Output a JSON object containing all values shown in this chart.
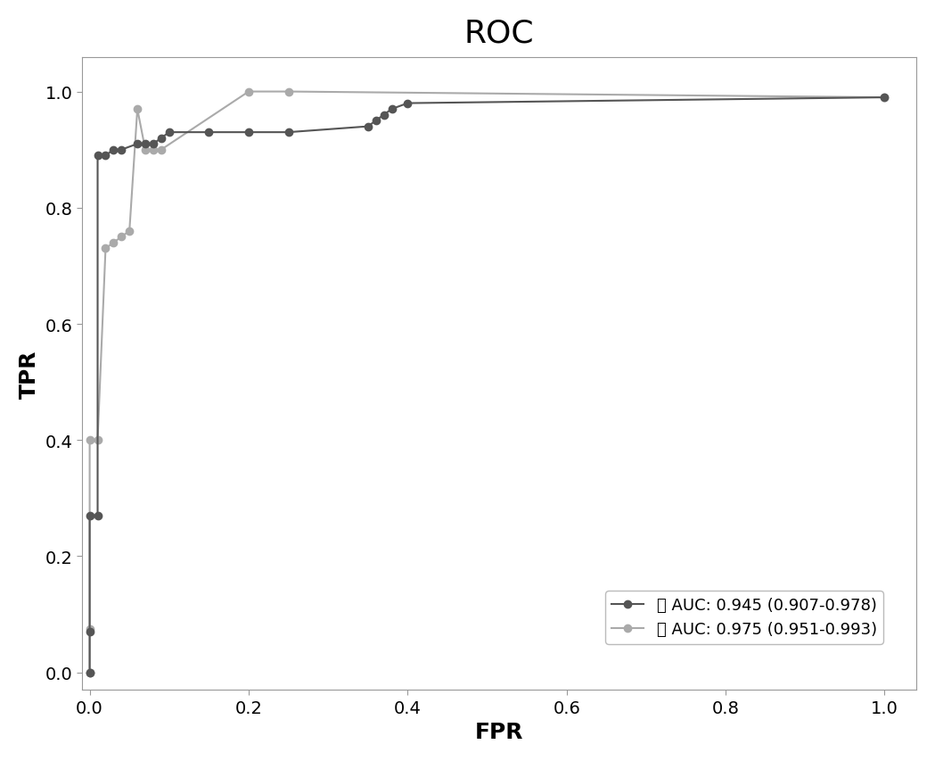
{
  "title": "ROC",
  "xlabel": "FPR",
  "ylabel": "TPR",
  "title_fontsize": 26,
  "label_fontsize": 18,
  "tick_fontsize": 14,
  "legend_fontsize": 13,
  "background_color": "#ffffff",
  "series1_label": "属 AUC: 0.945 (0.907-0.978)",
  "series2_label": "种 AUC: 0.975 (0.951-0.993)",
  "series1_color": "#555555",
  "series2_color": "#aaaaaa",
  "series1_fpr": [
    0.0,
    0.0,
    0.0,
    0.01,
    0.01,
    0.02,
    0.03,
    0.04,
    0.06,
    0.07,
    0.08,
    0.09,
    0.1,
    0.15,
    0.2,
    0.25,
    0.35,
    0.36,
    0.37,
    0.38,
    0.4,
    1.0
  ],
  "series1_tpr": [
    0.0,
    0.07,
    0.27,
    0.27,
    0.89,
    0.89,
    0.9,
    0.9,
    0.91,
    0.91,
    0.91,
    0.92,
    0.93,
    0.93,
    0.93,
    0.93,
    0.94,
    0.95,
    0.96,
    0.97,
    0.98,
    0.99
  ],
  "series2_fpr": [
    0.0,
    0.0,
    0.0,
    0.0,
    0.01,
    0.02,
    0.03,
    0.04,
    0.05,
    0.06,
    0.07,
    0.08,
    0.09,
    0.2,
    0.25,
    1.0
  ],
  "series2_tpr": [
    0.0,
    0.0,
    0.075,
    0.4,
    0.4,
    0.73,
    0.74,
    0.75,
    0.76,
    0.97,
    0.9,
    0.9,
    0.9,
    1.0,
    1.0,
    0.99
  ],
  "xlim": [
    -0.01,
    1.04
  ],
  "ylim": [
    -0.03,
    1.06
  ],
  "xticks": [
    0.0,
    0.2,
    0.4,
    0.6,
    0.8,
    1.0
  ],
  "yticks": [
    0.0,
    0.2,
    0.4,
    0.6,
    0.8,
    1.0
  ],
  "marker_size": 6,
  "line_width": 1.5
}
